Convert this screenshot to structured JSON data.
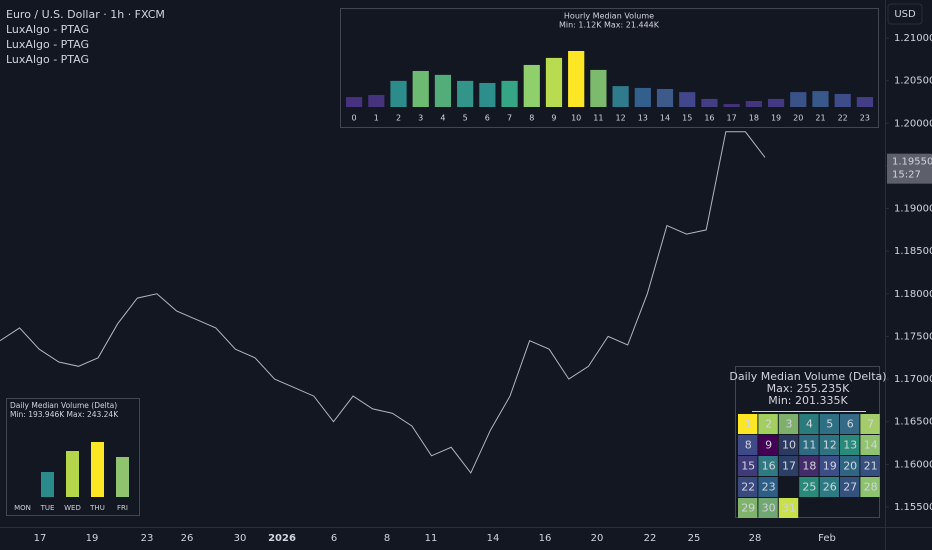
{
  "header": {
    "symbol": "Euro / U.S. Dollar · 1h · FXCM",
    "indicators": [
      "LuxAlgo - PTAG",
      "LuxAlgo - PTAG",
      "LuxAlgo - PTAG"
    ]
  },
  "price_axis": {
    "currency": "USD",
    "ylim": [
      1.15265,
      1.21446
    ],
    "ticks": [
      {
        "value": 1.21,
        "label": "1.21000"
      },
      {
        "value": 1.205,
        "label": "1.20500"
      },
      {
        "value": 1.2,
        "label": "1.20000"
      },
      {
        "value": 1.195,
        "label": "1.19500"
      },
      {
        "value": 1.19,
        "label": "1.19000"
      },
      {
        "value": 1.185,
        "label": "1.18500"
      },
      {
        "value": 1.18,
        "label": "1.18000"
      },
      {
        "value": 1.175,
        "label": "1.17500"
      },
      {
        "value": 1.17,
        "label": "1.17000"
      },
      {
        "value": 1.165,
        "label": "1.16500"
      },
      {
        "value": 1.16,
        "label": "1.16000"
      },
      {
        "value": 1.155,
        "label": "1.15500"
      }
    ],
    "current_price": {
      "value": 1.1955,
      "label": "1.19550"
    },
    "countdown": "15:27"
  },
  "time_axis": {
    "labels": [
      "17",
      "19",
      "23",
      "26",
      "30",
      "2026",
      "6",
      "8",
      "11",
      "14",
      "16",
      "20",
      "22",
      "25",
      "28",
      "Feb"
    ]
  },
  "price_series": {
    "color": "#b2b5be",
    "values": [
      1.1745,
      1.176,
      1.1735,
      1.172,
      1.1715,
      1.1725,
      1.1765,
      1.1795,
      1.18,
      1.178,
      1.177,
      1.176,
      1.1735,
      1.1725,
      1.17,
      1.169,
      1.168,
      1.165,
      1.168,
      1.1665,
      1.166,
      1.1645,
      1.161,
      1.162,
      1.159,
      1.164,
      1.168,
      1.1745,
      1.1735,
      1.17,
      1.1715,
      1.175,
      1.174,
      1.18,
      1.188,
      1.187,
      1.1875,
      1.199,
      1.199,
      1.196
    ]
  },
  "hourly_panel": {
    "title": "Hourly Median Volume",
    "subtitle": "Min: 1.12K  Max: 21.444K",
    "categories": [
      "0",
      "1",
      "2",
      "3",
      "4",
      "5",
      "6",
      "7",
      "8",
      "9",
      "10",
      "11",
      "12",
      "13",
      "14",
      "15",
      "16",
      "17",
      "18",
      "19",
      "20",
      "21",
      "22",
      "23"
    ],
    "values": [
      3.8,
      4.6,
      10,
      13.8,
      12.3,
      10,
      9.2,
      10,
      16.1,
      18.8,
      21.444,
      14.2,
      8,
      7.3,
      6.9,
      5.7,
      3.1,
      1.12,
      2.3,
      3.1,
      5.7,
      6.1,
      5,
      3.8
    ],
    "colors": [
      "#46327e",
      "#45337e",
      "#2c8c8b",
      "#6dba73",
      "#52ad7a",
      "#33948a",
      "#2e8e8c",
      "#36a585",
      "#8fcf6c",
      "#b8db50",
      "#fde725",
      "#7cba6e",
      "#2f7b8c",
      "#335f8c",
      "#3c5a8a",
      "#41478a",
      "#433d84",
      "#46327e",
      "#45357f",
      "#443a83",
      "#3b5288",
      "#38588a",
      "#3e4c89",
      "#433e85"
    ]
  },
  "daily_panel": {
    "title": "Daily Median Volume (Delta)",
    "subtitle": "Min: 193.946K  Max: 243.24K",
    "categories": [
      "MON",
      "TUE",
      "WED",
      "THU",
      "FRI"
    ],
    "values": [
      193.946,
      216.35,
      235.17,
      243.24,
      229.8
    ],
    "colors": [
      "#440154",
      "#2a8a8c",
      "#b5d64a",
      "#fde725",
      "#8fc36e"
    ]
  },
  "calendar": {
    "title": "Daily Median Volume (Delta)",
    "max": "Max: 255.235K",
    "min": "Min: 201.335K",
    "cells": [
      {
        "label": "1",
        "color": "#fde725"
      },
      {
        "label": "2",
        "color": "#a3cf5e"
      },
      {
        "label": "3",
        "color": "#7fb06b"
      },
      {
        "label": "4",
        "color": "#2a7c7c"
      },
      {
        "label": "5",
        "color": "#2f6f83"
      },
      {
        "label": "6",
        "color": "#356a86"
      },
      {
        "label": "7",
        "color": "#a5cc6a"
      },
      {
        "label": "8",
        "color": "#3d4a85"
      },
      {
        "label": "9",
        "color": "#440154"
      },
      {
        "label": "10",
        "color": "#2b3a5e"
      },
      {
        "label": "11",
        "color": "#2c6b80"
      },
      {
        "label": "12",
        "color": "#2d7480"
      },
      {
        "label": "13",
        "color": "#2a8a7a"
      },
      {
        "label": "14",
        "color": "#90c270"
      },
      {
        "label": "15",
        "color": "#3f3a7a"
      },
      {
        "label": "16",
        "color": "#2f7a82"
      },
      {
        "label": "17",
        "color": "#2c3f66"
      },
      {
        "label": "18",
        "color": "#442b6a"
      },
      {
        "label": "19",
        "color": "#3c4e87"
      },
      {
        "label": "20",
        "color": "#2d6583"
      },
      {
        "label": "21",
        "color": "#37507e"
      },
      {
        "label": "22",
        "color": "#3a4a7e"
      },
      {
        "label": "23",
        "color": "#2d5e85"
      },
      {
        "label": null,
        "color": "#131722"
      },
      {
        "label": "25",
        "color": "#2a8a7a"
      },
      {
        "label": "26",
        "color": "#2e7a82"
      },
      {
        "label": "27",
        "color": "#35517e"
      },
      {
        "label": "28",
        "color": "#8dc26e"
      },
      {
        "label": "29",
        "color": "#7fb46a"
      },
      {
        "label": "30",
        "color": "#6fa870"
      },
      {
        "label": "31",
        "color": "#c8e04a"
      }
    ]
  }
}
